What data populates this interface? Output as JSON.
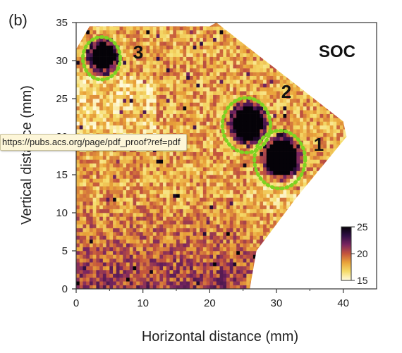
{
  "tooltip": {
    "url": "https://pubs.acs.org/page/pdf_proof?ref=pdf"
  },
  "chart_data": {
    "type": "heatmap",
    "panel_label": "(b)",
    "map_label": "SOC",
    "xlabel": "Horizontal distance (mm)",
    "ylabel": "Vertical distance (mm)",
    "xlim": [
      0,
      45
    ],
    "ylim": [
      0,
      35
    ],
    "xticks": [
      0,
      10,
      20,
      30,
      40
    ],
    "yticks": [
      0,
      5,
      10,
      15,
      20,
      25,
      30,
      35
    ],
    "colorbar": {
      "min": 15,
      "max": 25,
      "ticks": [
        15,
        20,
        25
      ],
      "colors": [
        "#fffbe0",
        "#f5dc6a",
        "#e9a33a",
        "#c4553d",
        "#7a2660",
        "#300e45",
        "#050208"
      ]
    },
    "regions": [
      {
        "label": "1",
        "center": [
          30.5,
          17
        ],
        "radius": 3.8,
        "values_description": "high"
      },
      {
        "label": "2",
        "center": [
          25.5,
          21.5
        ],
        "radius": 3.6,
        "values_description": "high"
      },
      {
        "label": "3",
        "center": [
          3.8,
          30.3
        ],
        "radius": 2.8,
        "values_description": "high"
      }
    ],
    "annotation_color": "#7ed321"
  }
}
